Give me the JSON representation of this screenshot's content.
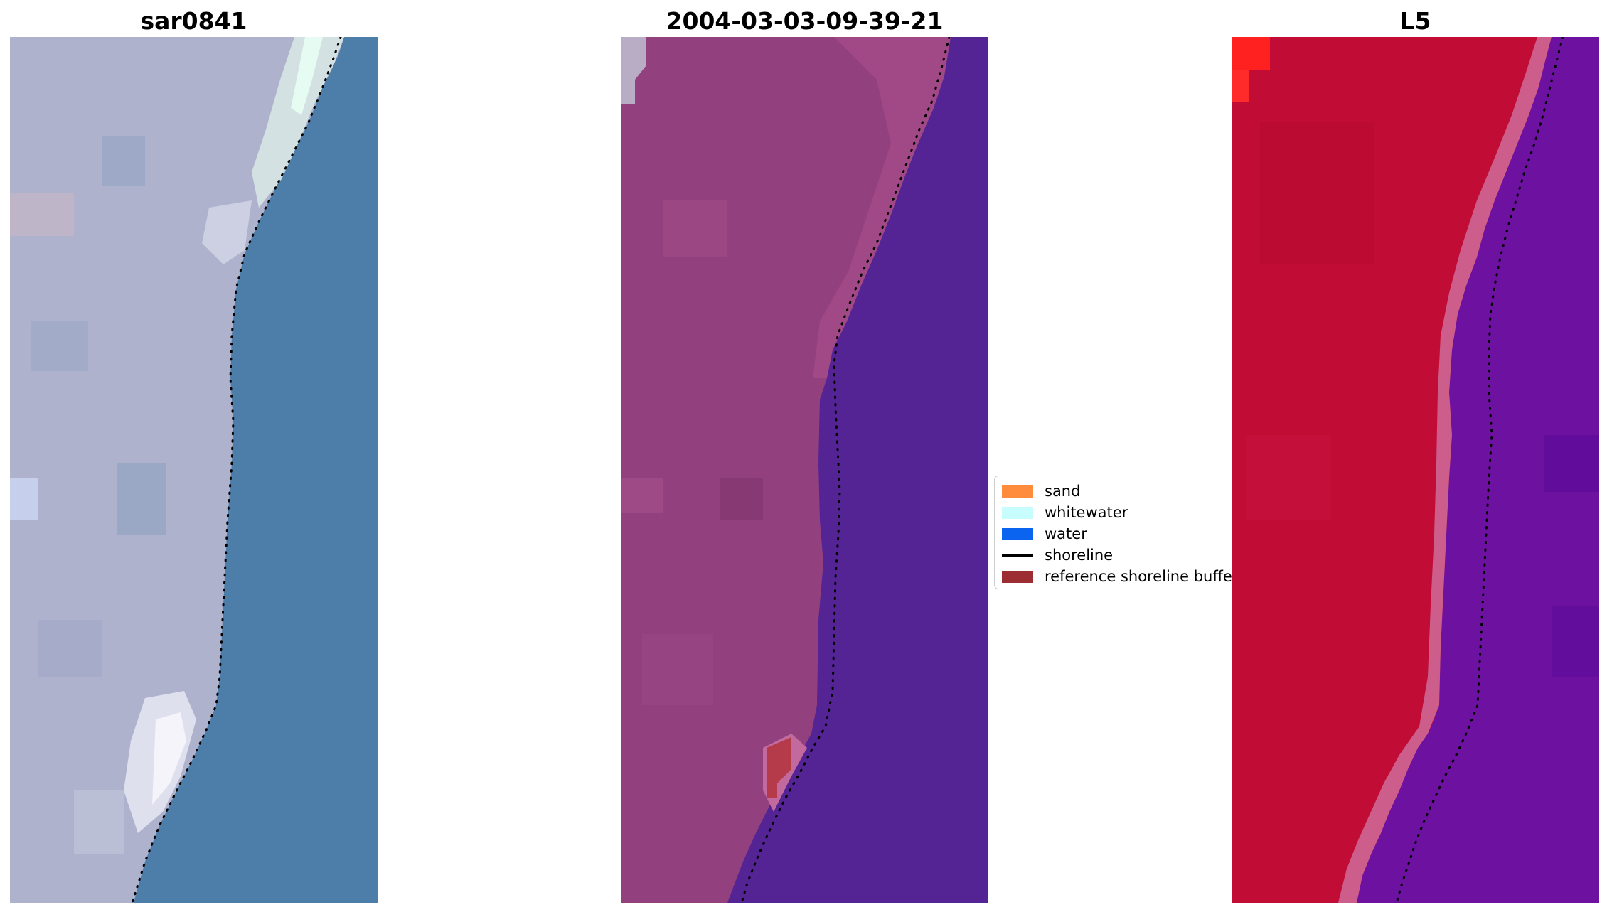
{
  "panels": [
    {
      "title": "sar0841"
    },
    {
      "title": "2004-03-03-09-39-21"
    },
    {
      "title": "L5"
    }
  ],
  "legend": {
    "items": [
      {
        "label": "sand",
        "color": "#ff8c3c"
      },
      {
        "label": "whitewater",
        "color": "#c8fdfd"
      },
      {
        "label": "water",
        "color": "#0a64f0"
      },
      {
        "label": "shoreline",
        "color": "#000000"
      },
      {
        "label": "reference shoreline buffer",
        "color": "#9b2d33"
      }
    ]
  },
  "colors": {
    "rgb_land": "#aeb2cc",
    "rgb_water": "#4d7da9",
    "classified_land": "#92407e",
    "classified_water": "#542394",
    "l5_land": "#c10d36",
    "l5_water": "#6c11a0"
  }
}
